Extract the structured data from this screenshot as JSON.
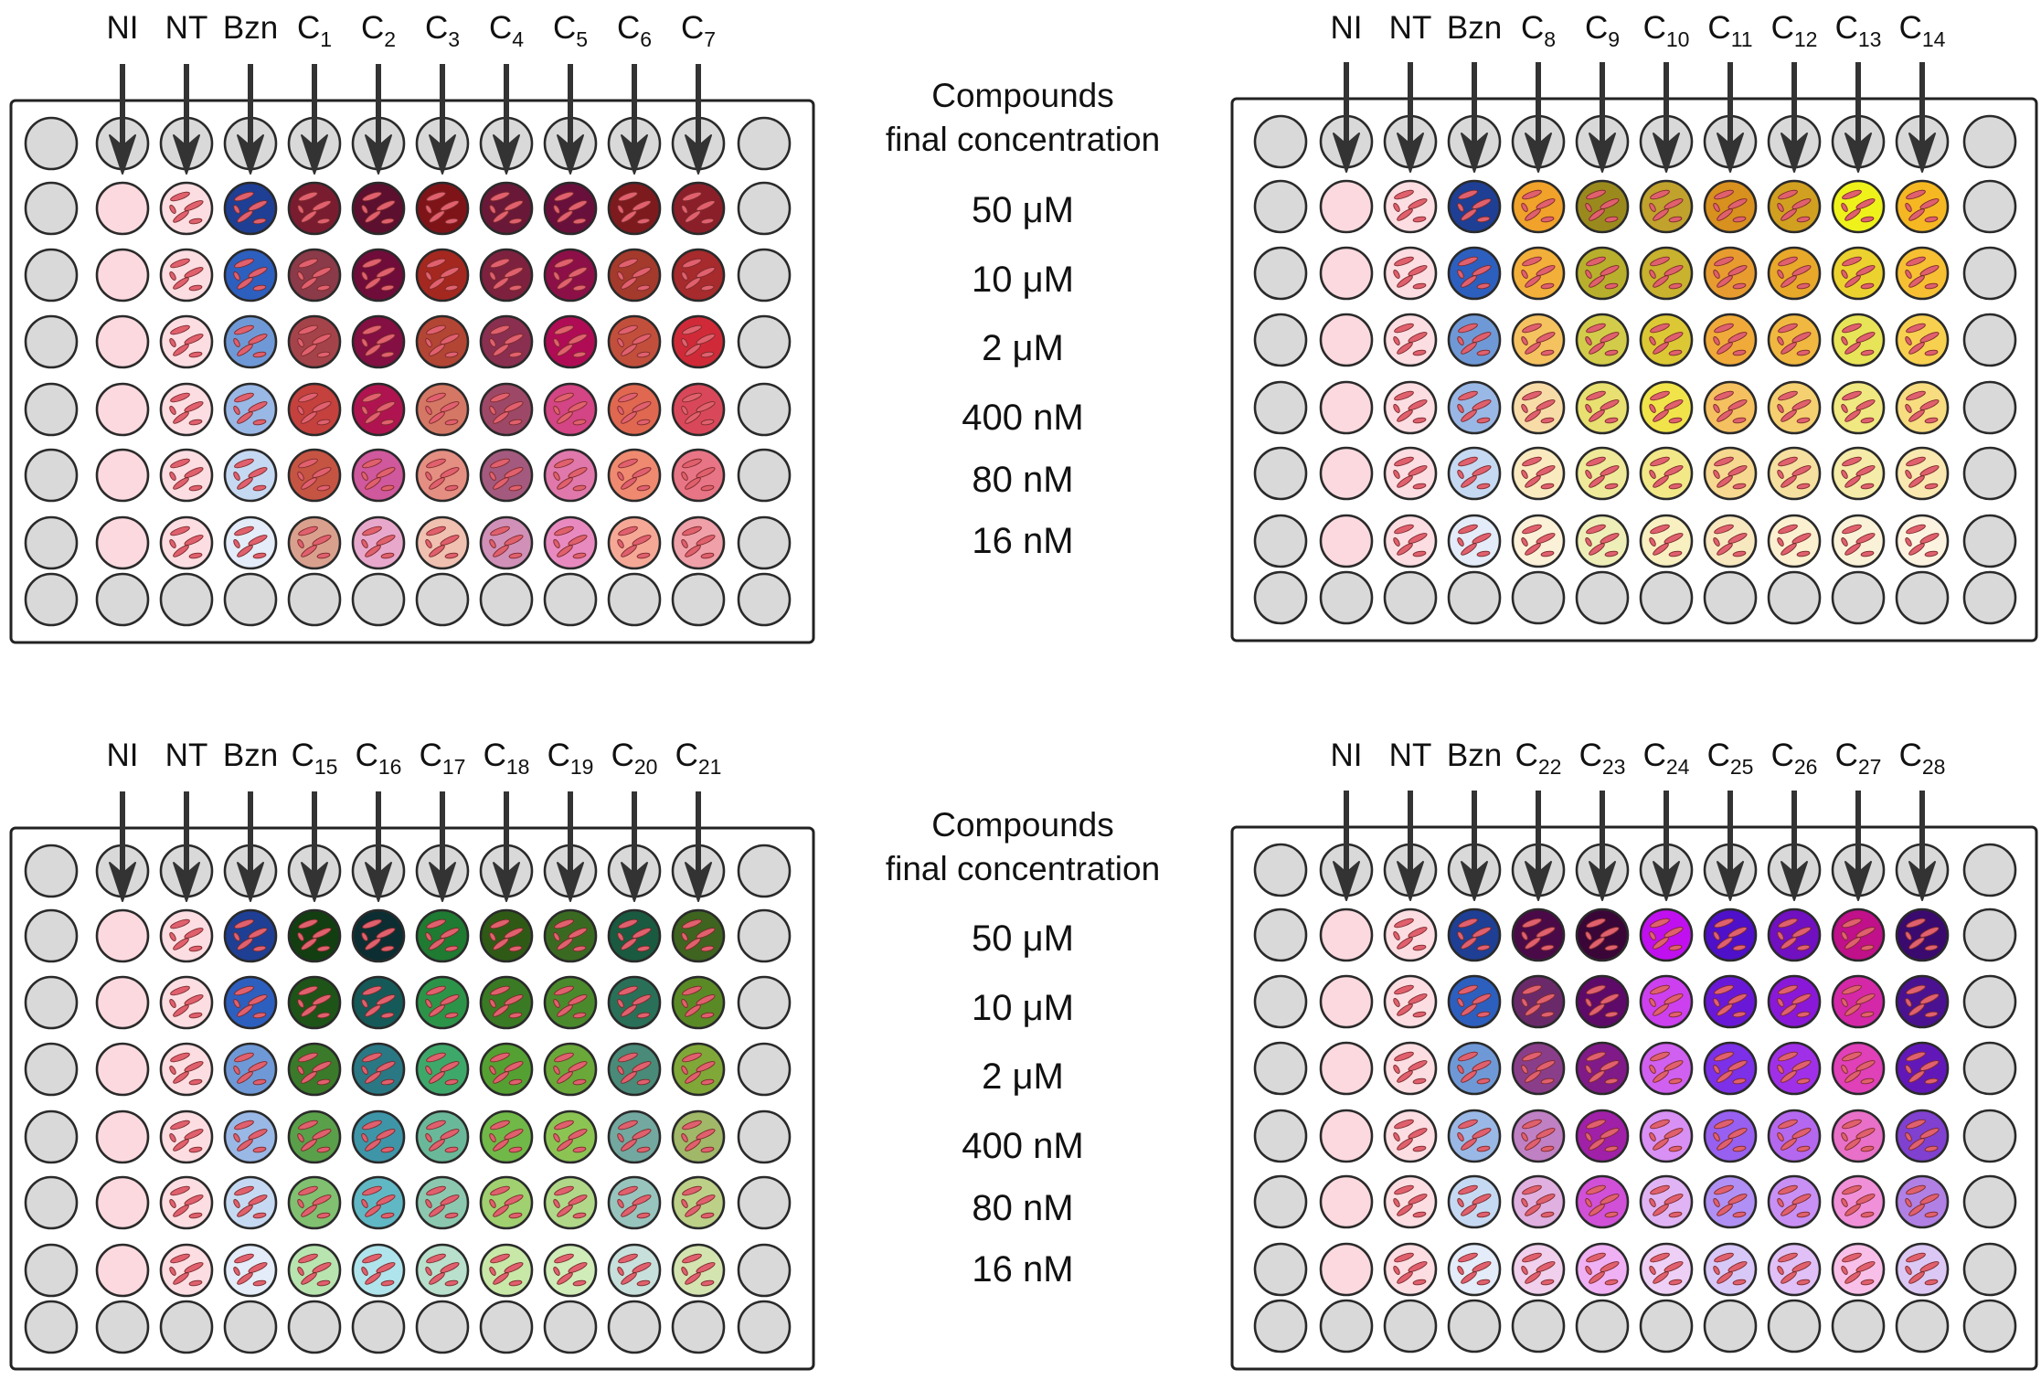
{
  "concentration_title": [
    "Compounds",
    "final concentration"
  ],
  "concentrations": [
    "50 μM",
    "10 μM",
    "2 μM",
    "400 nM",
    "80 nM",
    "16 nM"
  ],
  "columns_common": [
    "NI",
    "NT",
    "Bzn"
  ],
  "colors": {
    "empty_well": "#d9d9d9",
    "ni_well": "#fcd9df",
    "nt_well": "#fbdde2",
    "parasite": "#e0606e",
    "arrow": "#333333",
    "plate_border": "#222222"
  },
  "plates": [
    {
      "compounds": [
        [
          "C",
          "1"
        ],
        [
          "C",
          "2"
        ],
        [
          "C",
          "3"
        ],
        [
          "C",
          "4"
        ],
        [
          "C",
          "5"
        ],
        [
          "C",
          "6"
        ],
        [
          "C",
          "7"
        ]
      ],
      "bzn": [
        "#1e3f94",
        "#2d5fbf",
        "#6f99d6",
        "#9ab8e6",
        "#c6d9f2",
        "#e3ecf8"
      ],
      "wells": [
        [
          "#7a1c30",
          "#5c0f2e",
          "#7f1418",
          "#6a1838",
          "#690f3c",
          "#7d1a1e",
          "#8a1f2a"
        ],
        [
          "#8a3a48",
          "#6f0c3a",
          "#a4281f",
          "#7d213f",
          "#8c0f48",
          "#a43a2c",
          "#a72a2c"
        ],
        [
          "#a5434a",
          "#830f43",
          "#b34534",
          "#8a2f50",
          "#b00c55",
          "#c24f3c",
          "#d02a38"
        ],
        [
          "#c4413d",
          "#b01450",
          "#d47865",
          "#9e4868",
          "#d34584",
          "#e06850",
          "#d9485a"
        ],
        [
          "#c65443",
          "#d0589c",
          "#e58e82",
          "#a45a7e",
          "#e078ac",
          "#ef8a70",
          "#e87585"
        ],
        [
          "#d9a08e",
          "#e8a8cc",
          "#f0c0b0",
          "#d090b8",
          "#e88ac0",
          "#f6a897",
          "#f0a0a8"
        ]
      ]
    },
    {
      "compounds": [
        [
          "C",
          "8"
        ],
        [
          "C",
          "9"
        ],
        [
          "C",
          "10"
        ],
        [
          "C",
          "11"
        ],
        [
          "C",
          "12"
        ],
        [
          "C",
          "13"
        ],
        [
          "C",
          "14"
        ]
      ],
      "bzn": [
        "#1e3f94",
        "#2d5fbf",
        "#6f99d6",
        "#9ab8e6",
        "#c6d9f2",
        "#e3ecf8"
      ],
      "wells": [
        [
          "#f0a22a",
          "#9a8a1e",
          "#c0a22c",
          "#d8901e",
          "#d2a020",
          "#eef21a",
          "#f5b822"
        ],
        [
          "#f2b03a",
          "#b8b02c",
          "#c8b22e",
          "#e89c30",
          "#e8a82a",
          "#ecd22e",
          "#f6c032"
        ],
        [
          "#f5c260",
          "#d2cc4a",
          "#dcc834",
          "#f0aa3a",
          "#f0b840",
          "#e8e458",
          "#f7d050"
        ],
        [
          "#f8dca8",
          "#e8e070",
          "#f0e44a",
          "#f5c060",
          "#f4d070",
          "#f0e880",
          "#f7dc80"
        ],
        [
          "#faeac0",
          "#eeea9a",
          "#f2e888",
          "#f7d890",
          "#f6e0a0",
          "#f4eca8",
          "#f9e8b0"
        ],
        [
          "#fbf0d8",
          "#eeeeb8",
          "#f8f0c0",
          "#f8e8c0",
          "#fbf0d0",
          "#faf2d8",
          "#fcf2e0"
        ]
      ]
    },
    {
      "compounds": [
        [
          "C",
          "15"
        ],
        [
          "C",
          "16"
        ],
        [
          "C",
          "17"
        ],
        [
          "C",
          "18"
        ],
        [
          "C",
          "19"
        ],
        [
          "C",
          "20"
        ],
        [
          "C",
          "21"
        ]
      ],
      "bzn": [
        "#1e3f94",
        "#2d5fbf",
        "#6f99d6",
        "#9ab8e6",
        "#c6d9f2",
        "#e3ecf8"
      ],
      "wells": [
        [
          "#123e12",
          "#0c2e32",
          "#1f7a32",
          "#2f5a16",
          "#3a6a22",
          "#1a5a40",
          "#3e6420"
        ],
        [
          "#1e5418",
          "#155a58",
          "#2c9448",
          "#3a7a24",
          "#4a8a2c",
          "#2a7058",
          "#5a8a26"
        ],
        [
          "#3a7a2a",
          "#2a7884",
          "#3ea86a",
          "#55a032",
          "#6aa83a",
          "#4a8a78",
          "#80a838"
        ],
        [
          "#5aa04a",
          "#3e95a8",
          "#6ab89a",
          "#70b848",
          "#8cc454",
          "#72a8a0",
          "#a0b868"
        ],
        [
          "#80c070",
          "#60b8c4",
          "#8cc8b0",
          "#a0d070",
          "#b0d888",
          "#98c4be",
          "#bcd088"
        ],
        [
          "#b8e4b0",
          "#b0e4ec",
          "#b8e0cc",
          "#c8e8a8",
          "#d0ecb8",
          "#c8e0dc",
          "#d4e4b0"
        ]
      ]
    },
    {
      "compounds": [
        [
          "C",
          "22"
        ],
        [
          "C",
          "23"
        ],
        [
          "C",
          "24"
        ],
        [
          "C",
          "25"
        ],
        [
          "C",
          "26"
        ],
        [
          "C",
          "27"
        ],
        [
          "C",
          "28"
        ]
      ],
      "bzn": [
        "#1e3f94",
        "#2d5fbf",
        "#6f99d6",
        "#9ab8e6",
        "#c6d9f2",
        "#e3ecf8"
      ],
      "wells": [
        [
          "#4a0a48",
          "#3a0638",
          "#c010f0",
          "#4e10c8",
          "#7010c0",
          "#c0108a",
          "#3a0a6e"
        ],
        [
          "#6a2a6a",
          "#5e0a68",
          "#cc40f0",
          "#6a18d8",
          "#8a18d8",
          "#d428a8",
          "#4a1290"
        ],
        [
          "#8a3e8a",
          "#801a88",
          "#d060f0",
          "#7c30e8",
          "#a030e8",
          "#e040b8",
          "#6218b8"
        ],
        [
          "#c080c4",
          "#a020a8",
          "#d890f4",
          "#9860f0",
          "#b468f0",
          "#e870c8",
          "#8040d0"
        ],
        [
          "#e0b0e0",
          "#d050d8",
          "#e0b4f4",
          "#b090f4",
          "#c890f4",
          "#f090d8",
          "#b080e4"
        ],
        [
          "#f0d0ec",
          "#f0b0f4",
          "#eed0f6",
          "#d8c8f8",
          "#e0c0f6",
          "#f8c0e8",
          "#dcc8f4"
        ]
      ]
    }
  ]
}
